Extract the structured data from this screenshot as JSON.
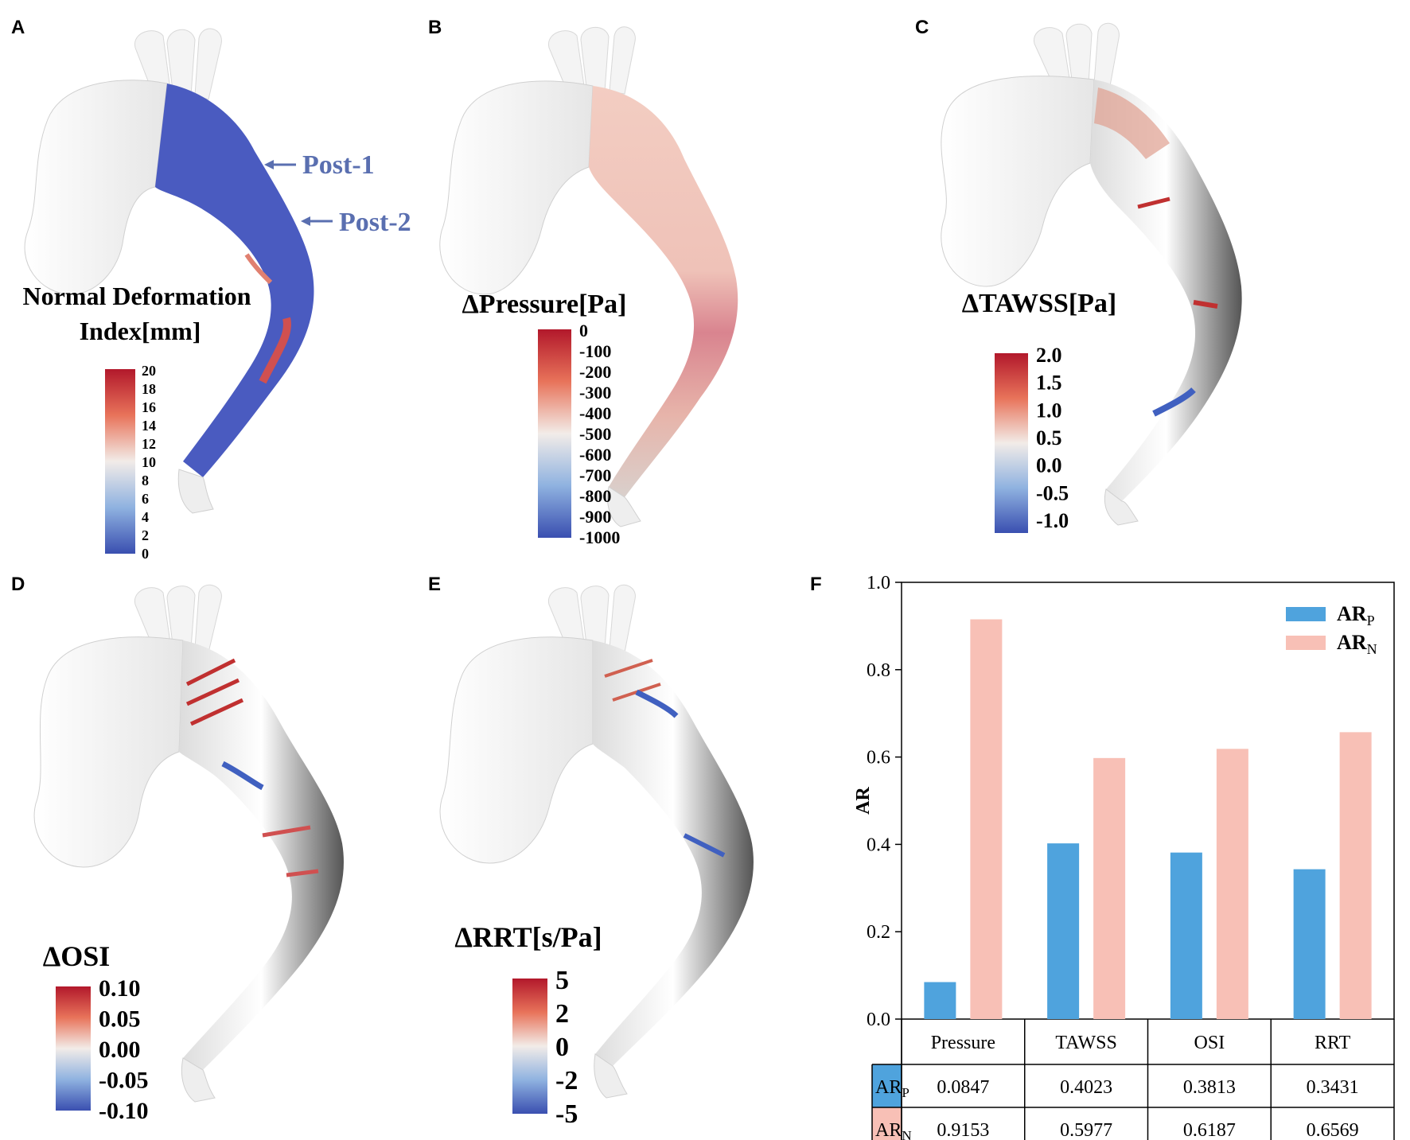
{
  "panels": {
    "A": {
      "letter": "A",
      "title_line1": "Normal Deformation",
      "title_line2": "Index[mm]",
      "ticks": [
        "20",
        "18",
        "16",
        "14",
        "12",
        "10",
        "8",
        "6",
        "4",
        "2",
        "0"
      ],
      "annotations": [
        "Post-1",
        "Post-2"
      ]
    },
    "B": {
      "letter": "B",
      "title": "ΔPressure[Pa]",
      "ticks": [
        "0",
        "-100",
        "-200",
        "-300",
        "-400",
        "-500",
        "-600",
        "-700",
        "-800",
        "-900",
        "-1000"
      ]
    },
    "C": {
      "letter": "C",
      "title": "ΔTAWSS[Pa]",
      "ticks": [
        "2.0",
        "1.5",
        "1.0",
        "0.5",
        "0.0",
        "-0.5",
        "-1.0"
      ]
    },
    "D": {
      "letter": "D",
      "title": "ΔOSI",
      "ticks": [
        "0.10",
        "0.05",
        "0.00",
        "-0.05",
        "-0.10"
      ]
    },
    "E": {
      "letter": "E",
      "title": "ΔRRT[s/Pa]",
      "ticks": [
        "5",
        "2",
        "0",
        "-2",
        "-5"
      ]
    },
    "F": {
      "letter": "F"
    }
  },
  "colors": {
    "arp": "#4fa3dd",
    "arn": "#f8c0b6",
    "vessel_gray": "#f2f2f2",
    "blue": "#3a4fb0",
    "red": "#b2182b"
  },
  "chart_data": {
    "type": "bar",
    "categories": [
      "Pressure",
      "TAWSS",
      "OSI",
      "RRT"
    ],
    "series": [
      {
        "name_main": "AR",
        "name_sub": "P",
        "values": [
          0.0847,
          0.4023,
          0.3813,
          0.3431
        ]
      },
      {
        "name_main": "AR",
        "name_sub": "N",
        "values": [
          0.9153,
          0.5977,
          0.6187,
          0.6569
        ]
      }
    ],
    "ylabel": "AR",
    "ylim": [
      0.0,
      1.0
    ],
    "yticks": [
      "0.0",
      "0.2",
      "0.4",
      "0.6",
      "0.8",
      "1.0"
    ],
    "legend": "top-right",
    "table": {
      "rows": [
        {
          "label_main": "AR",
          "label_sub": "P",
          "cells": [
            "0.0847",
            "0.4023",
            "0.3813",
            "0.3431"
          ]
        },
        {
          "label_main": "AR",
          "label_sub": "N",
          "cells": [
            "0.9153",
            "0.5977",
            "0.6187",
            "0.6569"
          ]
        }
      ]
    }
  }
}
